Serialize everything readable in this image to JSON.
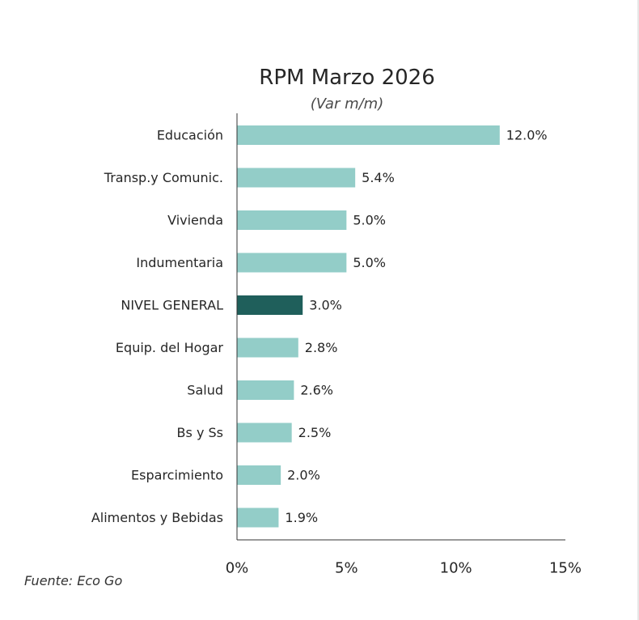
{
  "chart_data": {
    "type": "bar",
    "orientation": "horizontal",
    "title": "RPM Marzo 2026",
    "subtitle": "(Var m/m)",
    "categories": [
      "Educación",
      "Transp.y Comunic.",
      "Vivienda",
      "Indumentaria",
      "NIVEL GENERAL",
      "Equip. del Hogar",
      "Salud",
      "Bs y Ss",
      "Esparcimiento",
      "Alimentos y Bebidas"
    ],
    "values": [
      12.0,
      5.4,
      5.0,
      5.0,
      3.0,
      2.8,
      2.6,
      2.5,
      2.0,
      1.9
    ],
    "value_labels": [
      "12.0%",
      "5.4%",
      "5.0%",
      "5.0%",
      "3.0%",
      "2.8%",
      "2.6%",
      "2.5%",
      "2.0%",
      "1.9%"
    ],
    "highlight_category": "NIVEL GENERAL",
    "xlim": [
      0,
      15
    ],
    "xticks": [
      0,
      5,
      10,
      15
    ],
    "xtick_labels": [
      "0%",
      "5%",
      "10%",
      "15%"
    ],
    "xlabel": "",
    "ylabel": "",
    "grid": false,
    "source": "Fuente: Eco Go",
    "colors": {
      "bar": "#93cdc8",
      "highlight": "#1f5f5b",
      "axis": "#333333",
      "text": "#262626"
    }
  }
}
